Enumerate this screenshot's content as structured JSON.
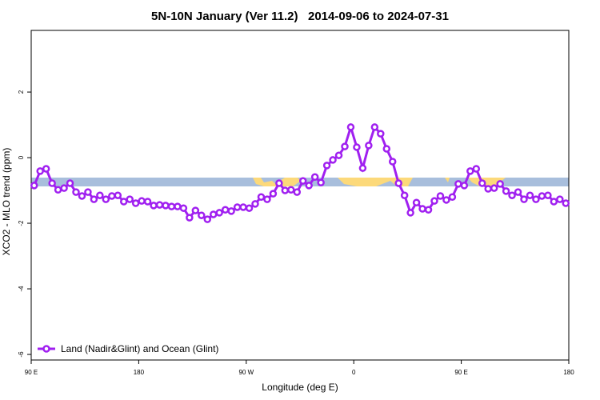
{
  "chart_data": {
    "type": "line",
    "title": "5N-10N January (Ver 11.2)   2014-09-06 to 2024-07-31",
    "x_label": "Longitude (deg E)",
    "y_label": "XCO2 - MLO trend (ppm)",
    "x": [
      92.5,
      97.5,
      102.5,
      107.5,
      112.5,
      117.5,
      122.5,
      127.5,
      132.5,
      137.5,
      142.5,
      147.5,
      152.5,
      157.5,
      162.5,
      167.5,
      172.5,
      177.5,
      182.5,
      187.5,
      192.5,
      197.5,
      202.5,
      207.5,
      212.5,
      217.5,
      222.5,
      227.5,
      232.5,
      237.5,
      242.5,
      247.5,
      252.5,
      257.5,
      262.5,
      267.5,
      272.5,
      277.5,
      282.5,
      287.5,
      292.5,
      297.5,
      302.5,
      307.5,
      312.5,
      317.5,
      322.5,
      327.5,
      332.5,
      337.5,
      342.5,
      347.5,
      352.5,
      357.5,
      362.5,
      367.5,
      372.5,
      377.5,
      382.5,
      387.5,
      392.5,
      397.5,
      402.5,
      407.5,
      412.5,
      417.5,
      422.5,
      427.5,
      432.5,
      437.5,
      442.5,
      447.5,
      452.5,
      457.5,
      462.5,
      467.5,
      472.5,
      477.5,
      482.5,
      487.5,
      492.5,
      497.5,
      502.5,
      507.5,
      512.5,
      517.5,
      522.5,
      527.5,
      532.5,
      537.5
    ],
    "series": [
      {
        "name": "Land (Nadir&Glint) and Ocean (Glint)",
        "color": "#a020f0",
        "values": [
          -0.85,
          -0.41,
          -0.34,
          -0.78,
          -0.98,
          -0.93,
          -0.78,
          -1.05,
          -1.17,
          -1.05,
          -1.27,
          -1.15,
          -1.27,
          -1.17,
          -1.15,
          -1.34,
          -1.27,
          -1.39,
          -1.32,
          -1.34,
          -1.46,
          -1.44,
          -1.46,
          -1.49,
          -1.49,
          -1.54,
          -1.83,
          -1.61,
          -1.76,
          -1.88,
          -1.73,
          -1.68,
          -1.59,
          -1.63,
          -1.51,
          -1.51,
          -1.54,
          -1.41,
          -1.2,
          -1.27,
          -1.1,
          -0.78,
          -1.0,
          -0.98,
          -1.05,
          -0.71,
          -0.85,
          -0.59,
          -0.76,
          -0.24,
          -0.07,
          0.07,
          0.34,
          0.93,
          0.32,
          -0.32,
          0.37,
          0.93,
          0.73,
          0.27,
          -0.12,
          -0.78,
          -1.15,
          -1.68,
          -1.37,
          -1.56,
          -1.59,
          -1.32,
          -1.17,
          -1.29,
          -1.2,
          -0.8,
          -0.85,
          -0.41,
          -0.34,
          -0.78,
          -0.95,
          -0.93,
          -0.8,
          -1.02,
          -1.15,
          -1.05,
          -1.27,
          -1.15,
          -1.27,
          -1.17,
          -1.15,
          -1.34,
          -1.27,
          -1.39
        ]
      }
    ],
    "xlim": [
      90,
      540
    ],
    "xticks": [
      {
        "value": 90,
        "label": "90 E"
      },
      180,
      {
        "value": 270,
        "label": "90 W"
      },
      {
        "value": 360,
        "label": "0"
      },
      {
        "value": 450,
        "label": "90 E"
      },
      {
        "value": 540,
        "label": "180"
      }
    ],
    "ylim": [
      -6.17,
      3.88
    ],
    "yticks": [
      2,
      0,
      -2,
      -4,
      -6
    ],
    "legend": "bottom-left"
  }
}
